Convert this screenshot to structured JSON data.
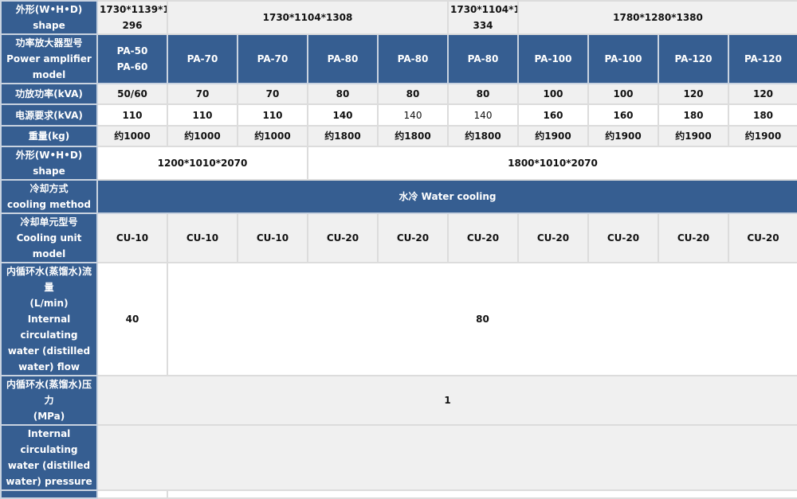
{
  "colors": {
    "header_blue": "#365e91",
    "row_gray": "#f0f0f0",
    "row_white": "#ffffff"
  },
  "rows": [
    {
      "label": "外形(W•H•D)\nshape",
      "style": "gray",
      "h": 41,
      "cells": [
        {
          "t": "1730*1139*1\n296",
          "span": 1
        },
        {
          "t": "1730*1104*1308",
          "span": 4
        },
        {
          "t": "1730*1104*1\n334",
          "span": 1
        },
        {
          "t": "1780*1280*1380",
          "span": 4
        }
      ]
    },
    {
      "label": "功率放大器型号\nPower amplifier\nmodel",
      "style": "blue",
      "h": 62,
      "cells": [
        {
          "t": "PA-50\nPA-60"
        },
        {
          "t": "PA-70"
        },
        {
          "t": "PA-70"
        },
        {
          "t": "PA-80"
        },
        {
          "t": "PA-80"
        },
        {
          "t": "PA-80"
        },
        {
          "t": "PA-100"
        },
        {
          "t": "PA-100"
        },
        {
          "t": "PA-120"
        },
        {
          "t": "PA-120"
        }
      ]
    },
    {
      "label": "功放功率(kVA)",
      "style": "gray",
      "h": 26,
      "cells": [
        {
          "t": "50/60"
        },
        {
          "t": "70"
        },
        {
          "t": "70"
        },
        {
          "t": "80"
        },
        {
          "t": "80"
        },
        {
          "t": "80"
        },
        {
          "t": "100"
        },
        {
          "t": "100"
        },
        {
          "t": "120"
        },
        {
          "t": "120"
        }
      ]
    },
    {
      "label": "电源要求(kVA)",
      "style": "white",
      "h": 27,
      "cells": [
        {
          "t": "110"
        },
        {
          "t": "110"
        },
        {
          "t": "110"
        },
        {
          "t": "140"
        },
        {
          "t": "140",
          "normal": true
        },
        {
          "t": "140",
          "normal": true
        },
        {
          "t": "160"
        },
        {
          "t": "160"
        },
        {
          "t": "180"
        },
        {
          "t": "180"
        }
      ]
    },
    {
      "label": "重量(kg)",
      "style": "gray",
      "h": 26,
      "cells": [
        {
          "t": "约1000"
        },
        {
          "t": "约1000"
        },
        {
          "t": "约1000"
        },
        {
          "t": "约1800"
        },
        {
          "t": "约1800"
        },
        {
          "t": "约1800"
        },
        {
          "t": "约1900"
        },
        {
          "t": "约1900"
        },
        {
          "t": "约1900"
        },
        {
          "t": "约1900"
        }
      ]
    },
    {
      "label": "外形(W•H•D)\nshape",
      "style": "white",
      "h": 42,
      "cells": [
        {
          "t": "1200*1010*2070",
          "span": 3
        },
        {
          "t": "1800*1010*2070",
          "span": 7
        }
      ]
    },
    {
      "label": "冷却方式\ncooling method",
      "style": "blue",
      "h": 41,
      "cells": [
        {
          "t": "水冷  Water cooling",
          "span": 10
        }
      ]
    },
    {
      "label": "冷却单元型号\nCooling unit model",
      "style": "gray",
      "h": 42,
      "cells": [
        {
          "t": "CU-10"
        },
        {
          "t": "CU-10"
        },
        {
          "t": "CU-10"
        },
        {
          "t": "CU-20"
        },
        {
          "t": "CU-20"
        },
        {
          "t": "CU-20"
        },
        {
          "t": "CU-20"
        },
        {
          "t": "CU-20"
        },
        {
          "t": "CU-20"
        },
        {
          "t": "CU-20"
        }
      ]
    },
    {
      "label": "内循环水(蒸馏水)流量\n(L/min)\nInternal circulating\nwater (distilled\nwater) flow",
      "style": "white",
      "h": 101,
      "cells": [
        {
          "t": "40",
          "span": 1
        },
        {
          "t": "80",
          "span": 9
        }
      ]
    },
    {
      "label": "内循环水(蒸馏水)压力\n(MPa)",
      "style": "gray",
      "h": 42,
      "cells": [
        {
          "t": "1",
          "span": 10
        }
      ]
    },
    {
      "label": "Internal circulating\nwater (distilled\nwater) pressure",
      "style": "gray",
      "h": 66,
      "cells": [
        {
          "t": "",
          "span": 10
        }
      ]
    },
    {
      "label": "",
      "style": "white",
      "h": 10,
      "cells": [
        {
          "t": "",
          "span": 1
        },
        {
          "t": "",
          "span": 9
        }
      ]
    }
  ]
}
